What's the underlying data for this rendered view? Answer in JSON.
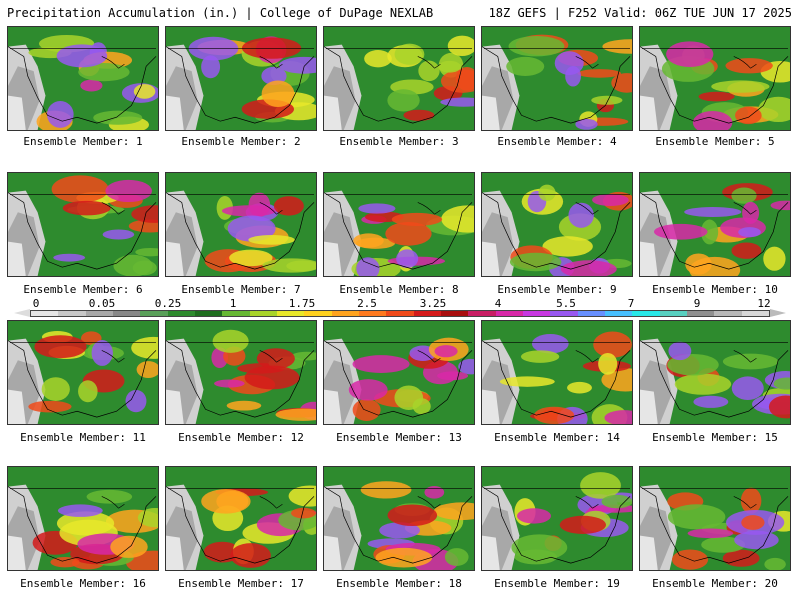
{
  "header": {
    "left": "Precipitation Accumulation (in.) | College of DuPage NEXLAB",
    "right": "18Z GEFS | F252 Valid: 06Z TUE JUN 17 2025"
  },
  "panels": [
    {
      "label": "Ensemble Member: 1"
    },
    {
      "label": "Ensemble Member: 2"
    },
    {
      "label": "Ensemble Member: 3"
    },
    {
      "label": "Ensemble Member: 4"
    },
    {
      "label": "Ensemble Member: 5"
    },
    {
      "label": "Ensemble Member: 6"
    },
    {
      "label": "Ensemble Member: 7"
    },
    {
      "label": "Ensemble Member: 8"
    },
    {
      "label": "Ensemble Member: 9"
    },
    {
      "label": "Ensemble Member: 10"
    },
    {
      "label": "Ensemble Member: 11"
    },
    {
      "label": "Ensemble Member: 12"
    },
    {
      "label": "Ensemble Member: 13"
    },
    {
      "label": "Ensemble Member: 14"
    },
    {
      "label": "Ensemble Member: 15"
    },
    {
      "label": "Ensemble Member: 16"
    },
    {
      "label": "Ensemble Member: 17"
    },
    {
      "label": "Ensemble Member: 18"
    },
    {
      "label": "Ensemble Member: 19"
    },
    {
      "label": "Ensemble Member: 20"
    }
  ],
  "legend": {
    "ticks": [
      "0",
      "0.05",
      "0.25",
      "1",
      "1.75",
      "2.5",
      "3.25",
      "4",
      "5.5",
      "7",
      "9",
      "12"
    ],
    "colors": [
      "#e6e6e6",
      "#c8c8c8",
      "#a8a8a8",
      "#888888",
      "#5aa05a",
      "#2e8b2e",
      "#1f6e1f",
      "#66b833",
      "#a8d42a",
      "#e8e82a",
      "#ffd21f",
      "#ffa41f",
      "#ff7a1f",
      "#f04a1a",
      "#d41a1a",
      "#a80e0e",
      "#c81e64",
      "#d828a8",
      "#c838e0",
      "#9858f0",
      "#6890ff",
      "#48c0ff",
      "#28e8e8",
      "#58d0c0",
      "#909090",
      "#b8b8b8",
      "#d8d8d8"
    ]
  }
}
